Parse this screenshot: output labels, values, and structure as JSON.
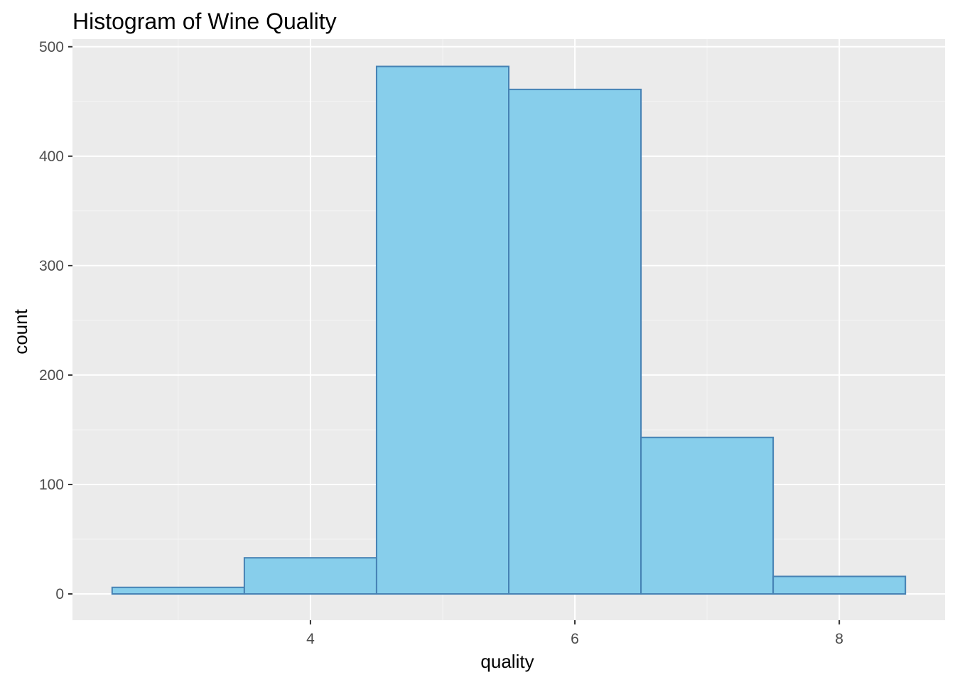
{
  "chart_data": {
    "type": "bar",
    "title": "Histogram of Wine Quality",
    "xlabel": "quality",
    "ylabel": "count",
    "bins": [
      {
        "x_start": 2.5,
        "x_end": 3.5,
        "count": 6
      },
      {
        "x_start": 3.5,
        "x_end": 4.5,
        "count": 33
      },
      {
        "x_start": 4.5,
        "x_end": 5.5,
        "count": 482
      },
      {
        "x_start": 5.5,
        "x_end": 6.5,
        "count": 461
      },
      {
        "x_start": 6.5,
        "x_end": 7.5,
        "count": 143
      },
      {
        "x_start": 7.5,
        "x_end": 8.5,
        "count": 16
      }
    ],
    "xlim": [
      2.2,
      8.8
    ],
    "ylim": [
      -24,
      507
    ],
    "x_ticks": [
      {
        "value": 4,
        "label": "4"
      },
      {
        "value": 6,
        "label": "6"
      },
      {
        "value": 8,
        "label": "8"
      }
    ],
    "x_minor_ticks": [
      3,
      5,
      7
    ],
    "y_ticks": [
      {
        "value": 0,
        "label": "0"
      },
      {
        "value": 100,
        "label": "100"
      },
      {
        "value": 200,
        "label": "200"
      },
      {
        "value": 300,
        "label": "300"
      },
      {
        "value": 400,
        "label": "400"
      },
      {
        "value": 500,
        "label": "500"
      }
    ],
    "y_minor_ticks": [
      50,
      150,
      250,
      350,
      450
    ],
    "grid": true,
    "colors": {
      "panel_background": "#ebebeb",
      "grid_major": "#ffffff",
      "grid_minor": "#f5f5f5",
      "bar_fill": "#87ceeb",
      "bar_outline": "#4682b4",
      "tick_color": "#333333"
    }
  }
}
